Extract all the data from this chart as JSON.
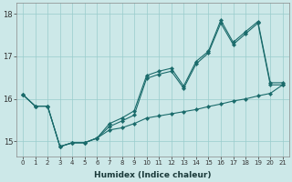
{
  "xlabel": "Humidex (Indice chaleur)",
  "bg_color": "#cce8e8",
  "grid_color": "#99cccc",
  "line_color": "#1a6b6b",
  "x_main": [
    0,
    1,
    2,
    3,
    4,
    5,
    6,
    7,
    8,
    9,
    10,
    11,
    12,
    13,
    14,
    15,
    16,
    17,
    18,
    19,
    20,
    21
  ],
  "y_main": [
    16.1,
    15.83,
    15.83,
    14.88,
    14.97,
    14.97,
    15.08,
    15.42,
    15.55,
    15.72,
    16.55,
    16.65,
    16.72,
    16.3,
    16.88,
    17.12,
    17.85,
    17.33,
    17.58,
    17.82,
    16.38,
    16.38
  ],
  "x_up": [
    0,
    1,
    2,
    3,
    4,
    5,
    6,
    7,
    8,
    9,
    10,
    11,
    12,
    13,
    14,
    15,
    16,
    17,
    18,
    19,
    20,
    21
  ],
  "y_up": [
    16.1,
    15.83,
    15.83,
    14.88,
    14.97,
    14.97,
    15.08,
    15.35,
    15.48,
    15.62,
    16.48,
    16.58,
    16.65,
    16.25,
    16.82,
    17.08,
    17.78,
    17.28,
    17.53,
    17.78,
    16.33,
    16.33
  ],
  "x_lo": [
    0,
    1,
    2,
    3,
    4,
    5,
    6,
    7,
    8,
    9,
    10,
    11,
    12,
    13,
    14,
    15,
    16,
    17,
    18,
    19,
    20,
    21
  ],
  "y_lo": [
    16.1,
    15.83,
    15.83,
    14.88,
    14.97,
    14.97,
    15.08,
    15.27,
    15.32,
    15.42,
    15.55,
    15.6,
    15.65,
    15.7,
    15.75,
    15.82,
    15.88,
    15.95,
    16.0,
    16.07,
    16.13,
    16.33
  ],
  "ylim": [
    14.65,
    18.25
  ],
  "yticks": [
    15,
    16,
    17,
    18
  ],
  "xlim": [
    -0.5,
    21.5
  ],
  "figsize": [
    3.2,
    2.0
  ],
  "dpi": 100
}
